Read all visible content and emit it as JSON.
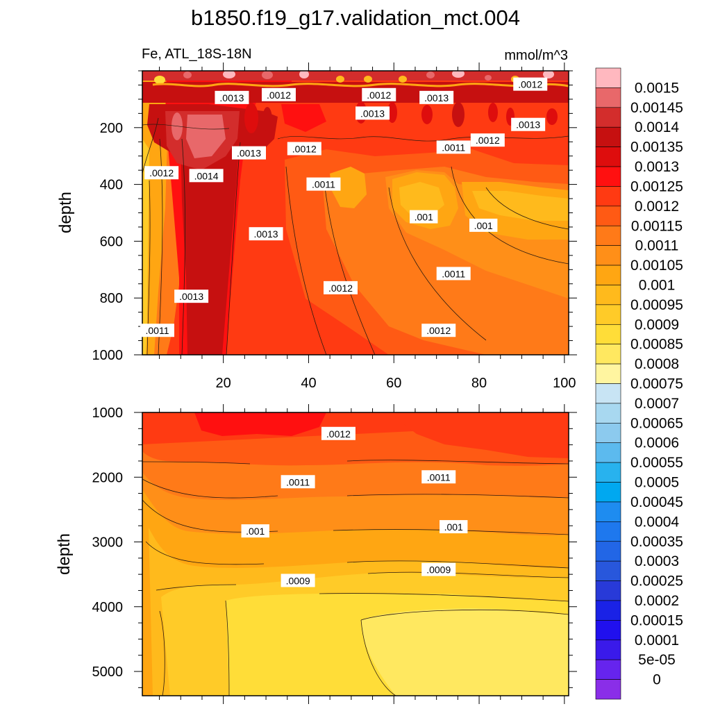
{
  "colors": {
    "frame": "#000000",
    "contour_line": "#2a1a10",
    "label_bg": "#ffffff"
  },
  "chart_data": [
    {
      "type": "heatmap",
      "panel": "upper",
      "title": "b1850.f19_g17.validation_mct.004",
      "left_string": "Fe, ATL_18S-18N",
      "right_string": "mmol/m^3",
      "xlabel": "",
      "ylabel": "depth",
      "xlim": [
        1,
        101
      ],
      "ylim": [
        1000,
        0
      ],
      "x_ticks": [
        20,
        40,
        60,
        80,
        100
      ],
      "y_ticks": [
        200,
        400,
        600,
        800,
        1000
      ],
      "contour_labels": [
        {
          "text": ".0013",
          "x": 22,
          "y": 95
        },
        {
          "text": ".0012",
          "x": 33,
          "y": 85
        },
        {
          "text": ".0012",
          "x": 56.5,
          "y": 85
        },
        {
          "text": ".0013",
          "x": 70,
          "y": 95
        },
        {
          "text": ".0012",
          "x": 92,
          "y": 48
        },
        {
          "text": ".0013",
          "x": 55,
          "y": 150
        },
        {
          "text": ".0013",
          "x": 91.5,
          "y": 190
        },
        {
          "text": ".0012",
          "x": 82,
          "y": 245
        },
        {
          "text": ".0011",
          "x": 74,
          "y": 270
        },
        {
          "text": ".0012",
          "x": 39,
          "y": 275
        },
        {
          "text": ".0013",
          "x": 26,
          "y": 290
        },
        {
          "text": ".0012",
          "x": 5.5,
          "y": 360
        },
        {
          "text": ".0014",
          "x": 16,
          "y": 370
        },
        {
          "text": ".0011",
          "x": 43.5,
          "y": 400
        },
        {
          "text": ".001",
          "x": 67,
          "y": 515
        },
        {
          "text": ".001",
          "x": 81,
          "y": 545
        },
        {
          "text": ".0013",
          "x": 30,
          "y": 575
        },
        {
          "text": ".0011",
          "x": 74,
          "y": 715
        },
        {
          "text": ".0012",
          "x": 47.5,
          "y": 765
        },
        {
          "text": ".0013",
          "x": 12.5,
          "y": 795
        },
        {
          "text": ".0011",
          "x": 4.5,
          "y": 915
        },
        {
          "text": ".0012",
          "x": 70.5,
          "y": 915
        }
      ]
    },
    {
      "type": "heatmap",
      "panel": "lower",
      "xlabel": "",
      "ylabel": "depth",
      "xlim": [
        1,
        101
      ],
      "ylim": [
        5375,
        1000
      ],
      "x_ticks": [
        20,
        40,
        60,
        80,
        100
      ],
      "y_ticks": [
        1000,
        2000,
        3000,
        4000,
        5000
      ],
      "contour_labels": [
        {
          "text": ".0012",
          "x": 47,
          "y": 1330
        },
        {
          "text": ".0011",
          "x": 37.5,
          "y": 2075
        },
        {
          "text": ".0011",
          "x": 70.5,
          "y": 2000
        },
        {
          "text": ".001",
          "x": 27.5,
          "y": 2835
        },
        {
          "text": ".001",
          "x": 74,
          "y": 2770
        },
        {
          "text": ".0009",
          "x": 37.5,
          "y": 3600
        },
        {
          "text": ".0009",
          "x": 70.5,
          "y": 3430
        }
      ]
    }
  ],
  "colorbar": {
    "labels": [
      "0.0015",
      "0.00145",
      "0.0014",
      "0.00135",
      "0.0013",
      "0.00125",
      "0.0012",
      "0.00115",
      "0.0011",
      "0.00105",
      "0.001",
      "0.00095",
      "0.0009",
      "0.00085",
      "0.0008",
      "0.00075",
      "0.0007",
      "0.00065",
      "0.0006",
      "0.00055",
      "0.0005",
      "0.00045",
      "0.0004",
      "0.00035",
      "0.0003",
      "0.00025",
      "0.0002",
      "0.00015",
      "0.0001",
      "5e-05",
      "0"
    ],
    "colors": [
      "#ffb8bf",
      "#e8686a",
      "#d32d2c",
      "#c61010",
      "#de0d0d",
      "#ff1010",
      "#ff3a12",
      "#ff5a14",
      "#ff7a18",
      "#ff8f18",
      "#ffa612",
      "#ffba1c",
      "#ffcb28",
      "#ffdd38",
      "#ffe860",
      "#fff5a0",
      "#c8e4f4",
      "#a8d8f0",
      "#8ccaee",
      "#5cbaee",
      "#28b2ee",
      "#00a8f0",
      "#1e8cf0",
      "#1e78ee",
      "#2266e6",
      "#2857dc",
      "#283ad8",
      "#1a22e6",
      "#2010ee",
      "#3a1aea",
      "#6624ee",
      "#8a2ee8"
    ]
  }
}
